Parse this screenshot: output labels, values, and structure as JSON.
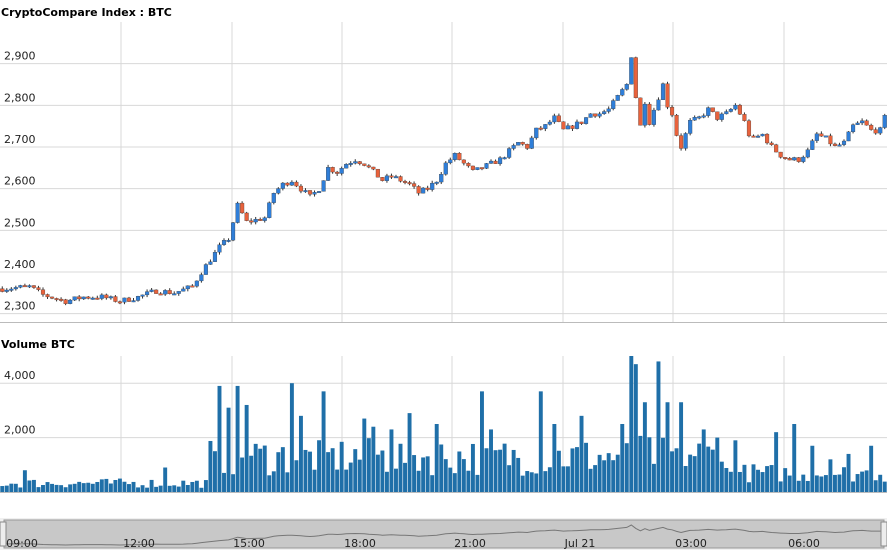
{
  "chart_data": [
    {
      "type": "candlestick",
      "title": "CryptoCompare Index : BTC",
      "ylim": [
        2280,
        3000
      ],
      "y_ticks": [
        2300,
        2400,
        2500,
        2600,
        2700,
        2800,
        2900
      ],
      "y_tick_labels": [
        "2,300",
        "2,400",
        "2,500",
        "2,600",
        "2,700",
        "2,800",
        "2,900"
      ],
      "grid": true,
      "colors": {
        "up": "#2f7ed8",
        "down": "#e8623c"
      },
      "x_labels": [
        "09:00",
        "12:00",
        "15:00",
        "18:00",
        "21:00",
        "Jul 21",
        "03:00",
        "06:00"
      ],
      "close_path": [
        [
          0,
          2360
        ],
        [
          6,
          2365
        ],
        [
          9,
          2345
        ],
        [
          14,
          2330
        ],
        [
          18,
          2340
        ],
        [
          22,
          2340
        ],
        [
          26,
          2330
        ],
        [
          30,
          2340
        ],
        [
          34,
          2355
        ],
        [
          38,
          2350
        ],
        [
          42,
          2365
        ],
        [
          44,
          2400
        ],
        [
          48,
          2460
        ],
        [
          50,
          2480
        ],
        [
          52,
          2560
        ],
        [
          54,
          2520
        ],
        [
          58,
          2530
        ],
        [
          60,
          2590
        ],
        [
          62,
          2610
        ],
        [
          64,
          2620
        ],
        [
          66,
          2600
        ],
        [
          68,
          2580
        ],
        [
          70,
          2600
        ],
        [
          72,
          2650
        ],
        [
          74,
          2640
        ],
        [
          76,
          2660
        ],
        [
          78,
          2670
        ],
        [
          80,
          2660
        ],
        [
          82,
          2640
        ],
        [
          84,
          2620
        ],
        [
          86,
          2630
        ],
        [
          88,
          2620
        ],
        [
          90,
          2610
        ],
        [
          92,
          2590
        ],
        [
          94,
          2600
        ],
        [
          96,
          2620
        ],
        [
          98,
          2660
        ],
        [
          100,
          2680
        ],
        [
          102,
          2660
        ],
        [
          104,
          2640
        ],
        [
          106,
          2650
        ],
        [
          108,
          2660
        ],
        [
          110,
          2670
        ],
        [
          112,
          2690
        ],
        [
          114,
          2710
        ],
        [
          116,
          2700
        ],
        [
          118,
          2740
        ],
        [
          120,
          2750
        ],
        [
          122,
          2770
        ],
        [
          124,
          2740
        ],
        [
          126,
          2750
        ],
        [
          128,
          2760
        ],
        [
          130,
          2780
        ],
        [
          132,
          2780
        ],
        [
          134,
          2790
        ],
        [
          136,
          2820
        ],
        [
          138,
          2850
        ],
        [
          139,
          2920
        ],
        [
          140,
          2820
        ],
        [
          141,
          2750
        ],
        [
          142,
          2810
        ],
        [
          143,
          2760
        ],
        [
          144,
          2790
        ],
        [
          146,
          2850
        ],
        [
          147,
          2800
        ],
        [
          148,
          2780
        ],
        [
          149,
          2730
        ],
        [
          150,
          2700
        ],
        [
          152,
          2760
        ],
        [
          154,
          2770
        ],
        [
          156,
          2790
        ],
        [
          158,
          2770
        ],
        [
          160,
          2780
        ],
        [
          162,
          2800
        ],
        [
          164,
          2760
        ],
        [
          165,
          2730
        ],
        [
          166,
          2720
        ],
        [
          168,
          2730
        ],
        [
          170,
          2700
        ],
        [
          172,
          2680
        ],
        [
          174,
          2670
        ],
        [
          176,
          2670
        ],
        [
          178,
          2690
        ],
        [
          180,
          2730
        ],
        [
          182,
          2720
        ],
        [
          184,
          2700
        ],
        [
          186,
          2710
        ],
        [
          188,
          2750
        ],
        [
          190,
          2760
        ],
        [
          192,
          2740
        ],
        [
          194,
          2740
        ],
        [
          195,
          2770
        ]
      ]
    },
    {
      "type": "bar",
      "title": "Volume BTC",
      "ylim": [
        0,
        5000
      ],
      "y_ticks": [
        2000,
        4000
      ],
      "y_tick_labels": [
        "2,000",
        "4,000"
      ],
      "color": "#1f6fa8",
      "spikes": [
        [
          5,
          800
        ],
        [
          36,
          900
        ],
        [
          47,
          1500
        ],
        [
          48,
          3900
        ],
        [
          50,
          3100
        ],
        [
          52,
          3900
        ],
        [
          54,
          3200
        ],
        [
          64,
          4000
        ],
        [
          66,
          2800
        ],
        [
          71,
          3700
        ],
        [
          80,
          2700
        ],
        [
          82,
          2400
        ],
        [
          86,
          2300
        ],
        [
          90,
          2900
        ],
        [
          96,
          2500
        ],
        [
          106,
          3700
        ],
        [
          108,
          2300
        ],
        [
          119,
          3700
        ],
        [
          122,
          2500
        ],
        [
          128,
          2800
        ],
        [
          137,
          2500
        ],
        [
          139,
          5000
        ],
        [
          140,
          4700
        ],
        [
          142,
          3300
        ],
        [
          145,
          4800
        ],
        [
          147,
          3300
        ],
        [
          150,
          3300
        ],
        [
          155,
          2300
        ],
        [
          158,
          2000
        ],
        [
          162,
          1900
        ],
        [
          171,
          2200
        ],
        [
          175,
          2500
        ],
        [
          179,
          1700
        ],
        [
          183,
          1200
        ],
        [
          187,
          1400
        ],
        [
          192,
          1700
        ]
      ]
    }
  ]
}
